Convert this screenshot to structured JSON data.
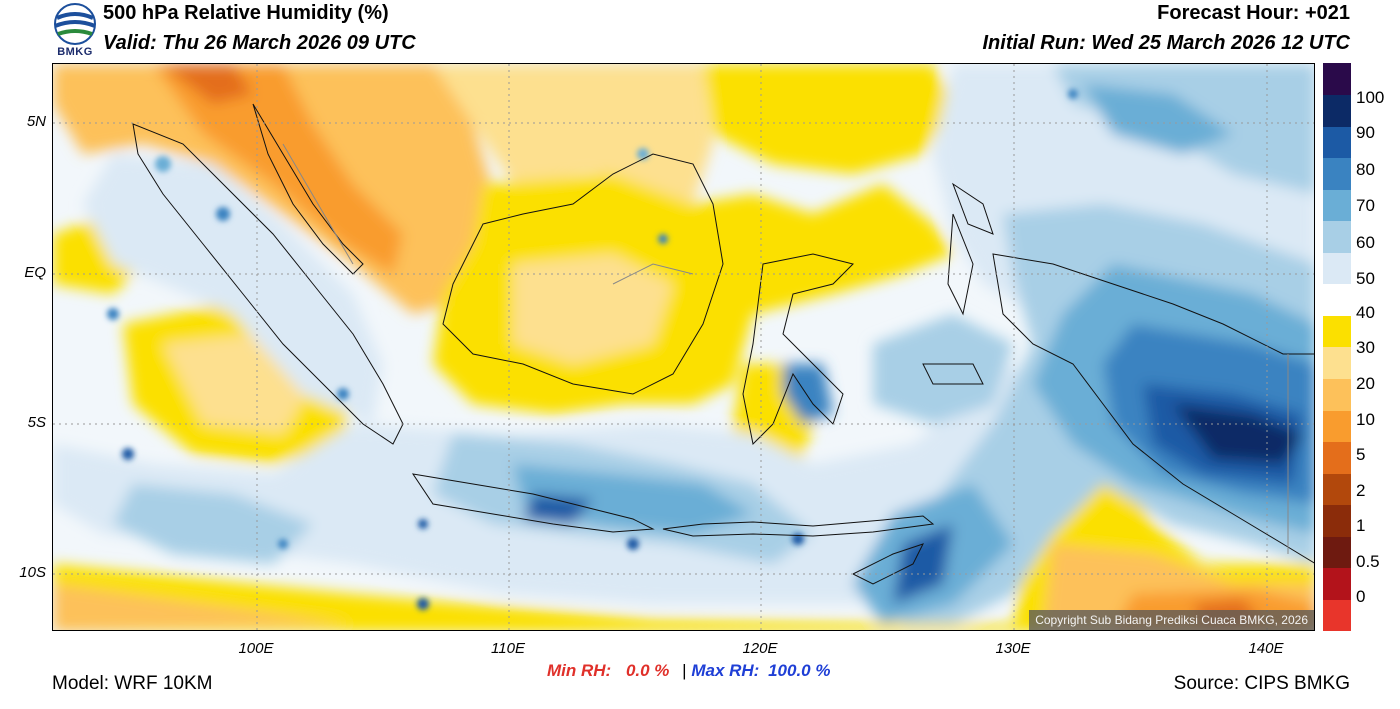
{
  "header": {
    "title": "500 hPa Relative Humidity (%)",
    "valid": "Valid: Thu 26 March 2026 09 UTC",
    "forecast_hour": "Forecast Hour: +021",
    "initial_run": "Initial Run: Wed 25 March 2026 12 UTC",
    "logo_text": "BMKG"
  },
  "map": {
    "lat_labels": [
      "5N",
      "EQ",
      "5S",
      "10S"
    ],
    "lon_labels": [
      "100E",
      "110E",
      "120E",
      "130E",
      "140E"
    ],
    "copyright": "Copyright Sub Bidang Prediksi Cuaca BMKG, 2026"
  },
  "colorbar": {
    "labels": [
      "100",
      "90",
      "80",
      "70",
      "60",
      "50",
      "40",
      "30",
      "20",
      "10",
      "5",
      "2",
      "1",
      "0.5",
      "0"
    ],
    "colors": [
      "#e8352b",
      "#b3131b",
      "#6e1a10",
      "#8b2c0a",
      "#b2480c",
      "#e46e1b",
      "#f99c2e",
      "#fdc15a",
      "#fde08f",
      "#fbe000",
      "#ffffff",
      "#dbe9f5",
      "#a8cfe6",
      "#6aaed6",
      "#3a83c1",
      "#1c5aa5",
      "#0c2a66",
      "#2a0a4a"
    ]
  },
  "stats": {
    "min_label": "Min RH:",
    "min_value": "0.0 %",
    "separator": "|",
    "max_label": "Max RH:",
    "max_value": "100.0 %"
  },
  "footer": {
    "model": "Model: WRF 10KM",
    "source": "Source: CIPS BMKG"
  }
}
